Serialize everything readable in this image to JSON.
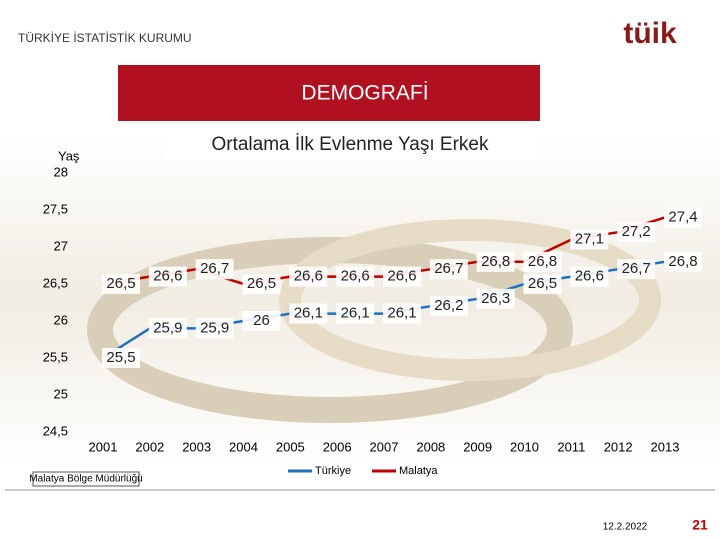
{
  "header": {
    "organization": "TÜRKİYE İSTATİSTİK KURUMU",
    "logo": "tüik",
    "section": "DEMOGRAFİ"
  },
  "chart_data": {
    "type": "line",
    "title": "Ortalama İlk Evlenme Yaşı Erkek",
    "y_label": "Yaş",
    "categories": [
      "2001",
      "2002",
      "2003",
      "2004",
      "2005",
      "2006",
      "2007",
      "2008",
      "2009",
      "2010",
      "2011",
      "2012",
      "2013"
    ],
    "series": [
      {
        "name": "Türkiye",
        "color": "#1f6fc0",
        "values": [
          25.5,
          25.9,
          25.9,
          26,
          26.1,
          26.1,
          26.1,
          26.2,
          26.3,
          26.5,
          26.6,
          26.7,
          26.8
        ],
        "value_labels": [
          "25,5",
          "25,9",
          "25,9",
          "26",
          "26,1",
          "26,1",
          "26,1",
          "26,2",
          "26,3",
          "26,5",
          "26,6",
          "26,7",
          "26,8"
        ]
      },
      {
        "name": "Malatya",
        "color": "#c00000",
        "values": [
          26.5,
          26.6,
          26.7,
          26.5,
          26.6,
          26.6,
          26.6,
          26.7,
          26.8,
          26.8,
          27.1,
          27.2,
          27.4
        ],
        "value_labels": [
          "26,5",
          "26,6",
          "26,7",
          "26,5",
          "26,6",
          "26,6",
          "26,6",
          "26,7",
          "26,8",
          "26,8",
          "27,1",
          "27,2",
          "27,4"
        ]
      }
    ],
    "ylim": [
      24.5,
      28
    ],
    "yticks": [
      {
        "value": 24.5,
        "label": "24,5"
      },
      25,
      {
        "value": 25.5,
        "label": "25,5"
      },
      26,
      {
        "value": 26.5,
        "label": "26,5"
      },
      27,
      {
        "value": 27.5,
        "label": "27,5"
      },
      28
    ],
    "legend": "bottom"
  },
  "footer": {
    "office": "Malatya Bölge Müdürlüğü",
    "date": "12.2.2022",
    "page": "21"
  }
}
